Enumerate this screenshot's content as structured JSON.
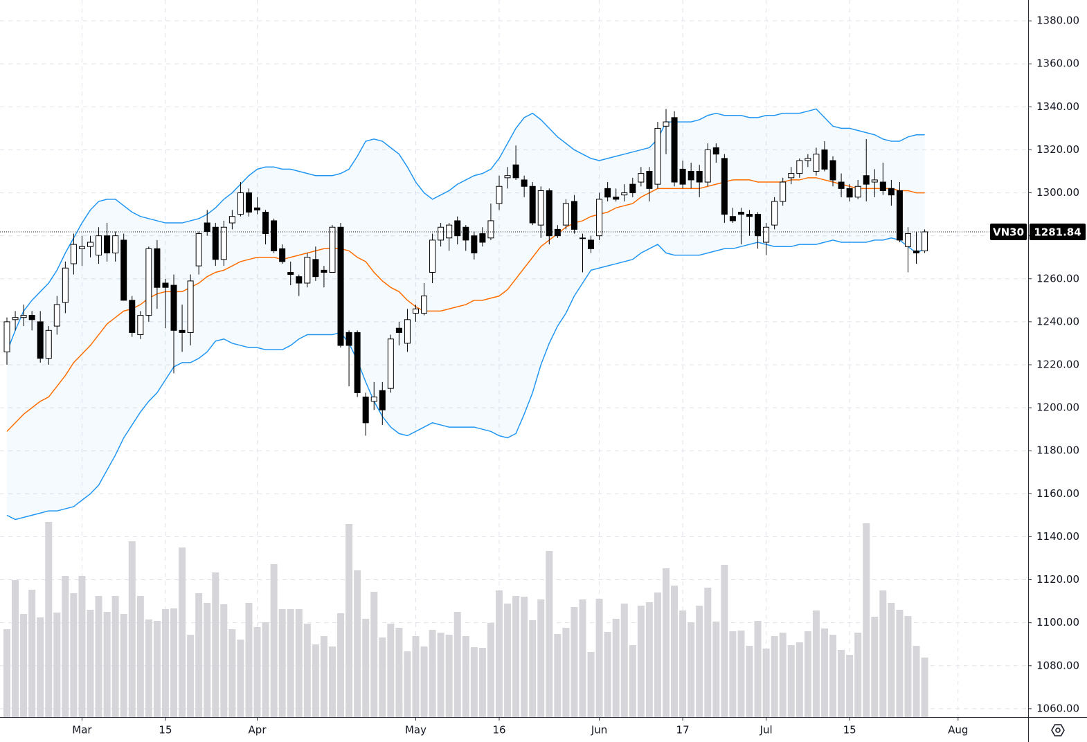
{
  "chart_data": {
    "type": "candlestick",
    "symbol": "VN30",
    "last_price": 1281.84,
    "open": [
      1226,
      1241,
      1242,
      1243,
      1240,
      1223,
      1238,
      1249,
      1267,
      1274,
      1275,
      1271,
      1280,
      1272,
      1278,
      1250,
      1234,
      1243,
      1274,
      1258,
      1257,
      1236,
      1235,
      1266,
      1286,
      1284,
      1269,
      1286,
      1290,
      1300,
      1293,
      1291,
      1287,
      1274,
      1263,
      1261,
      1258,
      1269,
      1264,
      1263,
      1284,
      1235,
      1235,
      1205,
      1203,
      1208,
      1209,
      1237,
      1230,
      1244,
      1244,
      1263,
      1278,
      1279,
      1287,
      1284,
      1280,
      1281,
      1279,
      1295,
      1307,
      1313,
      1306,
      1303,
      1285,
      1301,
      1283,
      1285,
      1296,
      1279,
      1278,
      1280,
      1302,
      1298,
      1299,
      1304,
      1305,
      1310,
      1304,
      1331,
      1335,
      1311,
      1310,
      1310,
      1305,
      1321,
      1316,
      1289,
      1291,
      1290,
      1290,
      1277,
      1285,
      1296,
      1307,
      1309,
      1315,
      1310,
      1320,
      1315,
      1305,
      1302,
      1298,
      1308,
      1305,
      1305,
      1302,
      1301,
      1275,
      1273,
      1273
    ],
    "high": [
      1242,
      1245,
      1248,
      1245,
      1245,
      1238,
      1252,
      1268,
      1281,
      1280,
      1280,
      1284,
      1286,
      1282,
      1281,
      1252,
      1245,
      1275,
      1278,
      1260,
      1262,
      1248,
      1262,
      1282,
      1292,
      1286,
      1287,
      1292,
      1305,
      1302,
      1298,
      1292,
      1288,
      1276,
      1268,
      1262,
      1272,
      1275,
      1266,
      1285,
      1286,
      1236,
      1236,
      1207,
      1212,
      1212,
      1234,
      1240,
      1246,
      1248,
      1258,
      1281,
      1286,
      1286,
      1289,
      1285,
      1282,
      1284,
      1295,
      1308,
      1312,
      1322,
      1308,
      1305,
      1303,
      1302,
      1285,
      1297,
      1299,
      1281,
      1280,
      1300,
      1305,
      1302,
      1304,
      1307,
      1312,
      1312,
      1333,
      1339,
      1338,
      1315,
      1314,
      1313,
      1323,
      1323,
      1318,
      1293,
      1293,
      1292,
      1291,
      1286,
      1298,
      1307,
      1312,
      1316,
      1318,
      1321,
      1324,
      1317,
      1309,
      1304,
      1306,
      1325,
      1311,
      1314,
      1306,
      1305,
      1284,
      1282,
      1283
    ],
    "low": [
      1220,
      1236,
      1238,
      1236,
      1221,
      1220,
      1234,
      1244,
      1262,
      1266,
      1270,
      1267,
      1268,
      1268,
      1250,
      1233,
      1232,
      1240,
      1246,
      1237,
      1216,
      1226,
      1229,
      1262,
      1280,
      1266,
      1266,
      1283,
      1289,
      1289,
      1290,
      1276,
      1272,
      1267,
      1257,
      1252,
      1256,
      1259,
      1256,
      1263,
      1228,
      1210,
      1205,
      1187,
      1199,
      1192,
      1207,
      1229,
      1226,
      1240,
      1243,
      1258,
      1275,
      1273,
      1276,
      1273,
      1269,
      1275,
      1278,
      1292,
      1302,
      1306,
      1298,
      1285,
      1279,
      1276,
      1279,
      1283,
      1281,
      1263,
      1272,
      1278,
      1296,
      1296,
      1296,
      1298,
      1303,
      1296,
      1302,
      1318,
      1303,
      1302,
      1302,
      1298,
      1303,
      1314,
      1286,
      1286,
      1276,
      1280,
      1274,
      1271,
      1283,
      1294,
      1304,
      1307,
      1312,
      1308,
      1310,
      1303,
      1298,
      1296,
      1297,
      1296,
      1298,
      1299,
      1294,
      1277,
      1263,
      1267,
      1272
    ],
    "close": [
      1240,
      1242,
      1243,
      1241,
      1223,
      1236,
      1248,
      1265,
      1276,
      1275,
      1277,
      1280,
      1272,
      1280,
      1250,
      1235,
      1243,
      1274,
      1256,
      1256,
      1236,
      1235,
      1259,
      1281,
      1282,
      1269,
      1284,
      1289,
      1300,
      1291,
      1292,
      1281,
      1273,
      1268,
      1262,
      1258,
      1270,
      1261,
      1263,
      1284,
      1229,
      1229,
      1207,
      1193,
      1205,
      1199,
      1232,
      1235,
      1241,
      1246,
      1252,
      1278,
      1284,
      1285,
      1280,
      1278,
      1272,
      1277,
      1287,
      1303,
      1308,
      1307,
      1303,
      1286,
      1301,
      1280,
      1280,
      1295,
      1283,
      1279,
      1274,
      1297,
      1298,
      1297,
      1300,
      1300,
      1309,
      1302,
      1330,
      1333,
      1305,
      1304,
      1306,
      1305,
      1320,
      1318,
      1290,
      1287,
      1290,
      1289,
      1280,
      1284,
      1296,
      1305,
      1309,
      1315,
      1316,
      1318,
      1311,
      1306,
      1302,
      1298,
      1303,
      1304,
      1306,
      1301,
      1299,
      1278,
      1281,
      1272,
      1281.84
    ],
    "volume": [
      127,
      198,
      149,
      184,
      144,
      282,
      151,
      204,
      179,
      204,
      155,
      175,
      152,
      175,
      149,
      254,
      175,
      141,
      139,
      156,
      157,
      245,
      119,
      179,
      165,
      209,
      163,
      127,
      112,
      165,
      130,
      137,
      221,
      156,
      156,
      156,
      135,
      105,
      117,
      102,
      150,
      279,
      212,
      142,
      181,
      115,
      135,
      129,
      95,
      117,
      102,
      126,
      122,
      119,
      152,
      117,
      101,
      100,
      136,
      183,
      164,
      175,
      174,
      140,
      170,
      240,
      120,
      129,
      159,
      170,
      94,
      171,
      123,
      142,
      164,
      104,
      161,
      166,
      180,
      215,
      190,
      154,
      137,
      161,
      187,
      138,
      220,
      124,
      125,
      103,
      139,
      99,
      117,
      122,
      104,
      108,
      124,
      154,
      128,
      119,
      97,
      90,
      122,
      280,
      145,
      183,
      165,
      155,
      146,
      103,
      86
    ],
    "bollinger": {
      "upper": [
        1226,
        1236,
        1245,
        1250,
        1254,
        1258,
        1264,
        1272,
        1279,
        1286,
        1292,
        1296,
        1297,
        1297,
        1294,
        1291,
        1289,
        1288,
        1287,
        1286,
        1286,
        1286,
        1287,
        1288,
        1290,
        1293,
        1297,
        1300,
        1304,
        1308,
        1311,
        1312,
        1312,
        1311,
        1311,
        1310,
        1309,
        1308,
        1308,
        1308,
        1309,
        1311,
        1317,
        1324,
        1325,
        1324,
        1321,
        1318,
        1312,
        1305,
        1300,
        1297,
        1299,
        1301,
        1304,
        1306,
        1308,
        1309,
        1311,
        1316,
        1323,
        1330,
        1335,
        1337,
        1334,
        1330,
        1326,
        1323,
        1320,
        1318,
        1316,
        1315,
        1316,
        1317,
        1318,
        1319,
        1320,
        1321,
        1325,
        1333,
        1333,
        1333,
        1333,
        1334,
        1336,
        1337,
        1336,
        1336,
        1336,
        1335,
        1335,
        1336,
        1336,
        1337,
        1337,
        1337,
        1338,
        1339,
        1335,
        1331,
        1330,
        1330,
        1329,
        1328,
        1327,
        1325,
        1324,
        1324,
        1326,
        1327,
        1327
      ],
      "middle": [
        1189,
        1193,
        1197,
        1200,
        1203,
        1205,
        1210,
        1215,
        1221,
        1225,
        1229,
        1234,
        1239,
        1242,
        1245,
        1246,
        1248,
        1251,
        1253,
        1254,
        1254,
        1254,
        1256,
        1258,
        1261,
        1263,
        1264,
        1266,
        1268,
        1269,
        1270,
        1270,
        1270,
        1269,
        1270,
        1271,
        1272,
        1273,
        1274,
        1274,
        1274,
        1273,
        1270,
        1268,
        1263,
        1259,
        1256,
        1254,
        1250,
        1247,
        1245,
        1245,
        1245,
        1246,
        1247,
        1248,
        1250,
        1250,
        1251,
        1252,
        1255,
        1260,
        1265,
        1270,
        1275,
        1278,
        1281,
        1284,
        1286,
        1287,
        1289,
        1290,
        1291,
        1293,
        1294,
        1295,
        1298,
        1300,
        1302,
        1302,
        1302,
        1302,
        1302,
        1302,
        1303,
        1304,
        1305,
        1306,
        1306,
        1306,
        1305,
        1305,
        1305,
        1305,
        1306,
        1306,
        1307,
        1307,
        1306,
        1305,
        1304,
        1303,
        1302,
        1302,
        1302,
        1302,
        1302,
        1301,
        1301,
        1300,
        1300
      ],
      "lower": [
        1150,
        1148,
        1149,
        1150,
        1151,
        1152,
        1152,
        1153,
        1154,
        1157,
        1160,
        1164,
        1171,
        1178,
        1186,
        1192,
        1198,
        1203,
        1207,
        1213,
        1219,
        1221,
        1221,
        1223,
        1226,
        1231,
        1232,
        1230,
        1229,
        1228,
        1228,
        1227,
        1227,
        1227,
        1229,
        1232,
        1234,
        1234,
        1234,
        1234,
        1235,
        1230,
        1222,
        1212,
        1203,
        1196,
        1191,
        1188,
        1187,
        1189,
        1191,
        1193,
        1192,
        1191,
        1191,
        1191,
        1191,
        1190,
        1189,
        1187,
        1186,
        1188,
        1197,
        1207,
        1220,
        1230,
        1238,
        1244,
        1252,
        1258,
        1264,
        1265,
        1266,
        1267,
        1268,
        1269,
        1272,
        1274,
        1276,
        1272,
        1271,
        1271,
        1271,
        1271,
        1272,
        1273,
        1274,
        1274,
        1275,
        1276,
        1277,
        1276,
        1275,
        1275,
        1275,
        1276,
        1276,
        1276,
        1277,
        1278,
        1277,
        1277,
        1277,
        1277,
        1278,
        1278,
        1279,
        1278,
        1275,
        1272,
        1274
      ]
    },
    "up_color": "#ffffff",
    "down_color": "#000000",
    "band_color": "#2196f3",
    "middle_color": "#ff6d00",
    "volume_color": "#d6d6da",
    "xlim": [
      -0.83,
      122.4
    ],
    "xticks": [
      {
        "value": 9,
        "label": "Mar"
      },
      {
        "value": 19,
        "label": "15"
      },
      {
        "value": 30,
        "label": "Apr"
      },
      {
        "value": 49,
        "label": "May"
      },
      {
        "value": 59,
        "label": "16"
      },
      {
        "value": 71,
        "label": "Jun"
      },
      {
        "value": 81,
        "label": "17"
      },
      {
        "value": 91,
        "label": "Jul"
      },
      {
        "value": 101,
        "label": "15"
      },
      {
        "value": 114,
        "label": "Aug"
      }
    ],
    "ylim": [
      1056.1,
      1389.7
    ],
    "yticks": [
      {
        "value": 1060,
        "label": "1060.00"
      },
      {
        "value": 1080,
        "label": "1080.00"
      },
      {
        "value": 1100,
        "label": "1100.00"
      },
      {
        "value": 1120,
        "label": "1120.00"
      },
      {
        "value": 1140,
        "label": "1140.00"
      },
      {
        "value": 1160,
        "label": "1160.00"
      },
      {
        "value": 1180,
        "label": "1180.00"
      },
      {
        "value": 1200,
        "label": "1200.00"
      },
      {
        "value": 1220,
        "label": "1220.00"
      },
      {
        "value": 1240,
        "label": "1240.00"
      },
      {
        "value": 1260,
        "label": "1260.00"
      },
      {
        "value": 1280,
        "label": "1280.00"
      },
      {
        "value": 1300,
        "label": "1300.00"
      },
      {
        "value": 1320,
        "label": "1320.00"
      },
      {
        "value": 1340,
        "label": "1340.00"
      },
      {
        "value": 1360,
        "label": "1360.00"
      },
      {
        "value": 1380,
        "label": "1380.00"
      }
    ],
    "grid": true
  }
}
